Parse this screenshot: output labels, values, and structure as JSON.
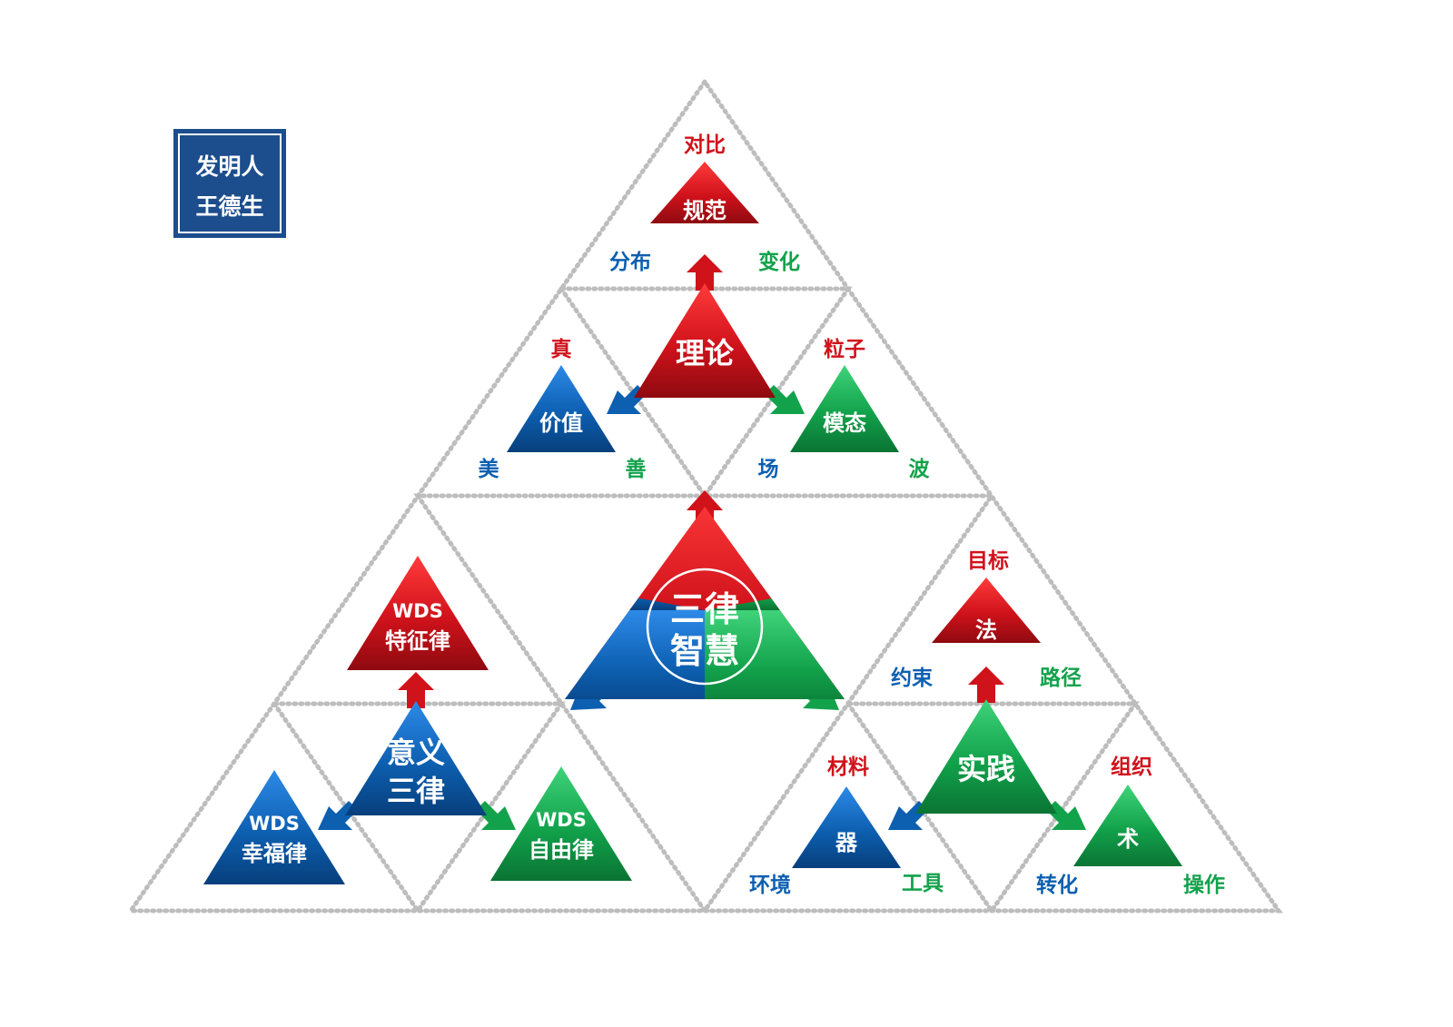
{
  "stamp": {
    "line1": "发明人",
    "line2": "王德生"
  },
  "colors": {
    "red": "#d0121b",
    "blue": "#0d5fb0",
    "green": "#12a24b",
    "stamp": "#1c4d8c",
    "grid": "#bdbdbd"
  },
  "center": {
    "line1": "三律",
    "line2": "智慧"
  },
  "theory": {
    "main": "理论",
    "top": {
      "label": "规范",
      "top": "对比",
      "left": "分布",
      "right": "变化"
    },
    "left": {
      "label": "价值",
      "top": "真",
      "left": "美",
      "right": "善"
    },
    "right": {
      "label": "模态",
      "top": "粒子",
      "left": "场",
      "right": "波"
    }
  },
  "meaning": {
    "main1": "意义",
    "main2": "三律",
    "top": {
      "line1": "WDS",
      "line2": "特征律"
    },
    "left": {
      "line1": "WDS",
      "line2": "幸福律"
    },
    "right": {
      "line1": "WDS",
      "line2": "自由律"
    }
  },
  "practice": {
    "main": "实践",
    "top": {
      "label": "法",
      "top": "目标",
      "left": "约束",
      "right": "路径"
    },
    "left": {
      "label": "器",
      "top": "材料",
      "left": "环境",
      "right": "工具"
    },
    "right": {
      "label": "术",
      "top": "组织",
      "left": "转化",
      "right": "操作"
    }
  }
}
